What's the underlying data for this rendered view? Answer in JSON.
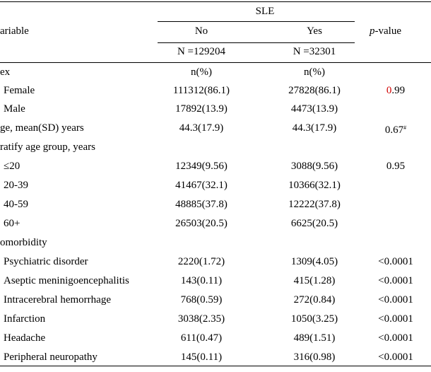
{
  "header": {
    "group": "SLE",
    "variable": "ariable",
    "no": "No",
    "yes": "Yes",
    "pvalue_italic": "p",
    "pvalue_rest": "-value",
    "n_no": "N =129204",
    "n_yes": "N =32301"
  },
  "rows": [
    {
      "label": "ex",
      "no": "n(%)",
      "yes": "n(%)",
      "p": ""
    },
    {
      "label": "Female",
      "no": "111312(86.1)",
      "yes": "27828(86.1)",
      "p_red": "0",
      "p": ".99"
    },
    {
      "label": "Male",
      "no": "17892(13.9)",
      "yes": "4473(13.9)",
      "p": ""
    },
    {
      "label": "ge, mean(SD) years",
      "no": "44.3(17.9)",
      "yes": "44.3(17.9)",
      "p": "0.67",
      "p_sup": "#"
    },
    {
      "label": "ratify age group, years",
      "no": "",
      "yes": "",
      "p": ""
    },
    {
      "label": "≤20",
      "no": "12349(9.56)",
      "yes": "3088(9.56)",
      "p": "0.95"
    },
    {
      "label": "20-39",
      "no": "41467(32.1)",
      "yes": "10366(32.1)",
      "p": ""
    },
    {
      "label": "40-59",
      "no": "48885(37.8)",
      "yes": "12222(37.8)",
      "p": ""
    },
    {
      "label": "60+",
      "no": "26503(20.5)",
      "yes": "6625(20.5)",
      "p": ""
    },
    {
      "label": "omorbidity",
      "no": "",
      "yes": "",
      "p": ""
    },
    {
      "label": "Psychiatric disorder",
      "no": "2220(1.72)",
      "yes": "1309(4.05)",
      "p": "<0.0001"
    },
    {
      "label": "Aseptic meninigoencephalitis",
      "no": "143(0.11)",
      "yes": "415(1.28)",
      "p": "<0.0001"
    },
    {
      "label": "Intracerebral hemorrhage",
      "no": "768(0.59)",
      "yes": "272(0.84)",
      "p": "<0.0001"
    },
    {
      "label": "Infarction",
      "no": "3038(2.35)",
      "yes": "1050(3.25)",
      "p": "<0.0001"
    },
    {
      "label": "Headache",
      "no": "611(0.47)",
      "yes": "489(1.51)",
      "p": "<0.0001"
    },
    {
      "label": "Peripheral neuropathy",
      "no": "145(0.11)",
      "yes": "316(0.98)",
      "p": "<0.0001"
    }
  ]
}
